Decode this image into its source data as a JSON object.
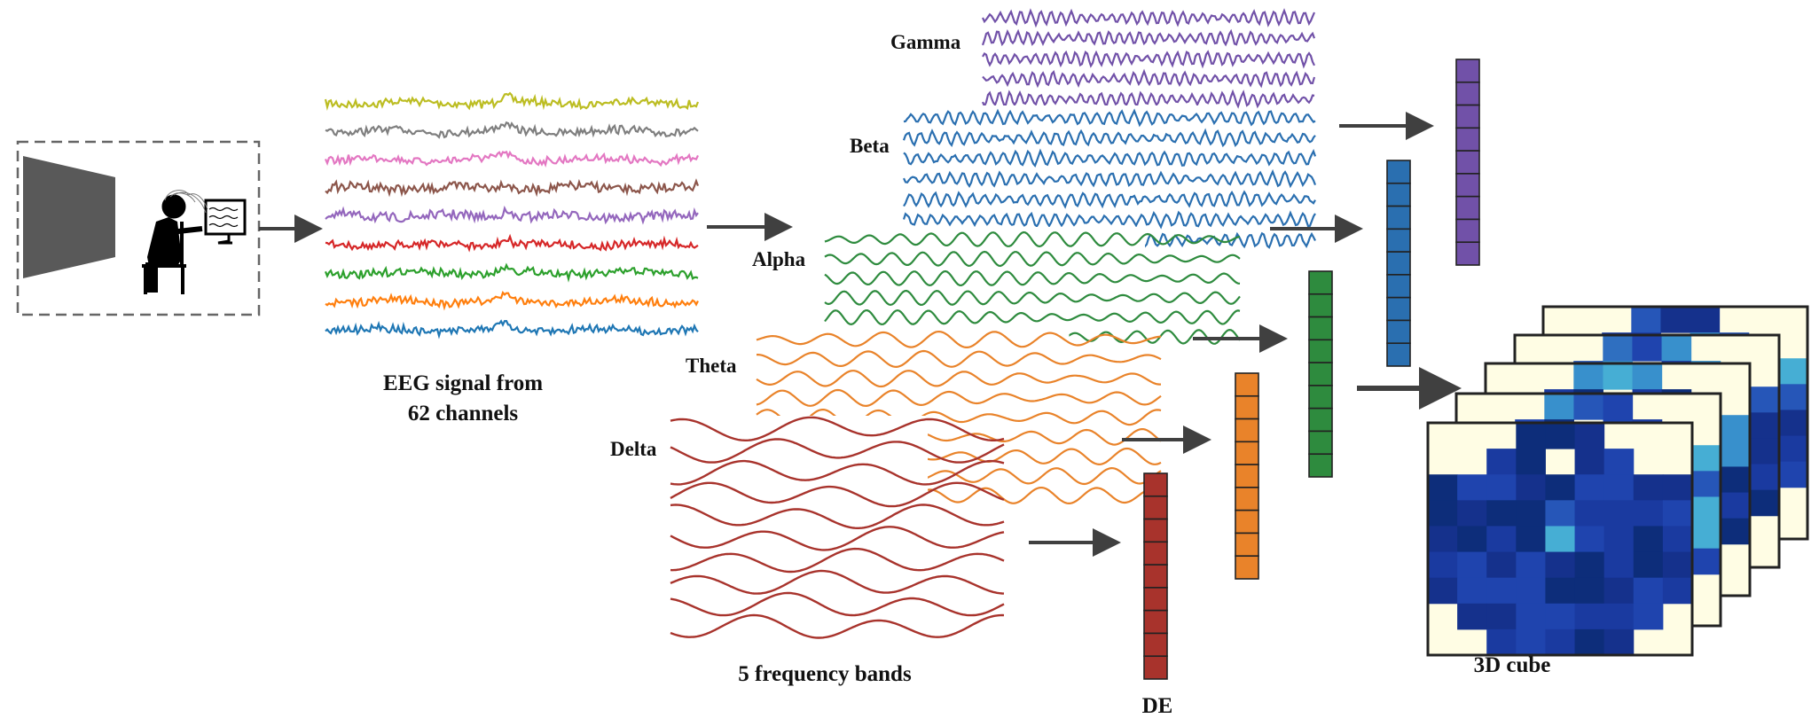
{
  "labels": {
    "eeg_caption_line1": "EEG signal from",
    "eeg_caption_line2": "62 channels",
    "bands_caption": "5 frequency bands",
    "de_caption": "DE",
    "cube_caption": "3D cube"
  },
  "bands": [
    {
      "name": "Gamma",
      "color": "#7151a8"
    },
    {
      "name": "Beta",
      "color": "#2a6fb0"
    },
    {
      "name": "Alpha",
      "color": "#2e8b3e"
    },
    {
      "name": "Theta",
      "color": "#e9832a"
    },
    {
      "name": "Delta",
      "color": "#a8332c"
    }
  ],
  "eeg_channel_colors": [
    "#bcbd22",
    "#7f7f7f",
    "#e377c2",
    "#8c564b",
    "#9467bd",
    "#d62728",
    "#2ca02c",
    "#ff7f0e",
    "#1f77b4"
  ],
  "de_vector_cells": 9,
  "cube": {
    "slices": 5,
    "grid": 9,
    "background_color": "#fffde4",
    "border_color": "#222222"
  },
  "icons": [
    "screen-icon",
    "person-icon",
    "chair-icon",
    "monitor-icon",
    "eeg-cap-icon"
  ]
}
